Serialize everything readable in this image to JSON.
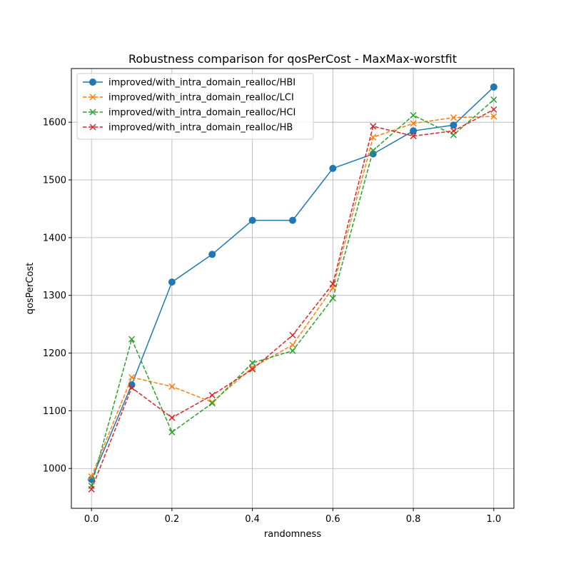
{
  "chart_data": {
    "type": "line",
    "title": "Robustness comparison for qosPerCost - MaxMax-worstfit",
    "xlabel": "randomness",
    "ylabel": "qosPerCost",
    "x": [
      0.0,
      0.1,
      0.2,
      0.3,
      0.4,
      0.5,
      0.6,
      0.7,
      0.8,
      0.9,
      1.0
    ],
    "xlim": [
      -0.05,
      1.05
    ],
    "ylim": [
      931,
      1693
    ],
    "x_ticks": [
      0.0,
      0.2,
      0.4,
      0.6,
      0.8,
      1.0
    ],
    "x_tick_labels": [
      "0.0",
      "0.2",
      "0.4",
      "0.6",
      "0.8",
      "1.0"
    ],
    "y_ticks": [
      1000,
      1100,
      1200,
      1300,
      1400,
      1500,
      1600
    ],
    "y_tick_labels": [
      "1000",
      "1100",
      "1200",
      "1300",
      "1400",
      "1500",
      "1600"
    ],
    "grid": true,
    "legend_position": "upper-left",
    "series": [
      {
        "name": "improved/with_intra_domain_realloc/HBI",
        "color": "#1f77b4",
        "marker": "circle",
        "linestyle": "solid",
        "values": [
          981,
          1145,
          1323,
          1371,
          1430,
          1430,
          1520,
          1545,
          1585,
          1595,
          1661
        ]
      },
      {
        "name": "improved/with_intra_domain_realloc/LCI",
        "color": "#ff7f0e",
        "marker": "x",
        "linestyle": "dashed",
        "values": [
          986,
          1158,
          1142,
          1115,
          1175,
          1214,
          1313,
          1574,
          1598,
          1608,
          1610
        ]
      },
      {
        "name": "improved/with_intra_domain_realloc/HCI",
        "color": "#2ca02c",
        "marker": "x",
        "linestyle": "dashed",
        "values": [
          970,
          1224,
          1063,
          1113,
          1183,
          1204,
          1295,
          1551,
          1612,
          1578,
          1639
        ]
      },
      {
        "name": "improved/with_intra_domain_realloc/HB",
        "color": "#d62728",
        "marker": "x",
        "linestyle": "dashed",
        "values": [
          964,
          1140,
          1088,
          1127,
          1172,
          1231,
          1320,
          1593,
          1576,
          1585,
          1622
        ]
      }
    ]
  }
}
